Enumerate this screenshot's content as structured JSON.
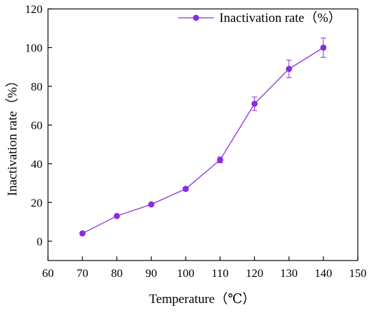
{
  "chart_data": {
    "type": "line",
    "title": "",
    "xlabel": "Temperature（℃）",
    "ylabel": "Inactivation rate（%）",
    "xlim": [
      60,
      150
    ],
    "ylim": [
      -10,
      120
    ],
    "x_ticks": [
      60,
      70,
      80,
      90,
      100,
      110,
      120,
      130,
      140,
      150
    ],
    "y_ticks": [
      0,
      20,
      40,
      60,
      80,
      100,
      120
    ],
    "grid": false,
    "legend_position": "top-right",
    "series": [
      {
        "name": "Inactivation rate（%）",
        "color": "#8A2BE2",
        "x": [
          70,
          80,
          90,
          100,
          110,
          120,
          130,
          140
        ],
        "y": [
          4,
          13,
          19,
          27,
          42,
          71,
          89,
          100
        ],
        "error": [
          0.5,
          0.5,
          0.5,
          0.8,
          1.5,
          3.5,
          4.5,
          5
        ]
      }
    ]
  }
}
